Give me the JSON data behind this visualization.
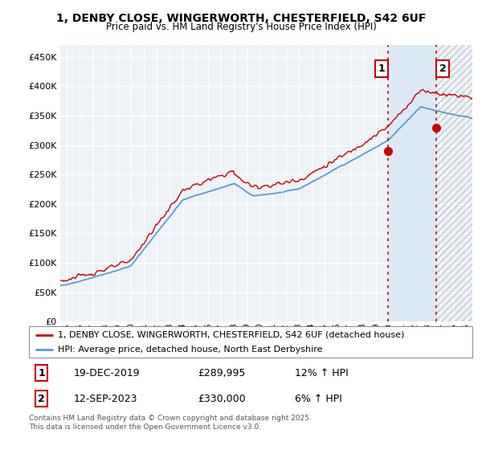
{
  "title_line1": "1, DENBY CLOSE, WINGERWORTH, CHESTERFIELD, S42 6UF",
  "title_line2": "Price paid vs. HM Land Registry's House Price Index (HPI)",
  "ylabel_ticks": [
    "£0",
    "£50K",
    "£100K",
    "£150K",
    "£200K",
    "£250K",
    "£300K",
    "£350K",
    "£400K",
    "£450K"
  ],
  "ytick_values": [
    0,
    50000,
    100000,
    150000,
    200000,
    250000,
    300000,
    350000,
    400000,
    450000
  ],
  "xlim_start": 1994.5,
  "xlim_end": 2026.5,
  "ylim": [
    0,
    470000
  ],
  "red_color": "#cc0000",
  "blue_color": "#5b9bd5",
  "blue_fill_color": "#dce8f5",
  "dashed_color": "#cc0000",
  "background_color": "#edf2f7",
  "grid_color": "#ffffff",
  "legend_label_red": "1, DENBY CLOSE, WINGERWORTH, CHESTERFIELD, S42 6UF (detached house)",
  "legend_label_blue": "HPI: Average price, detached house, North East Derbyshire",
  "sale1_date": "19-DEC-2019",
  "sale1_price": "£289,995",
  "sale1_hpi": "12% ↑ HPI",
  "sale1_x": 2019.96,
  "sale1_y": 289995,
  "sale2_date": "12-SEP-2023",
  "sale2_price": "£330,000",
  "sale2_hpi": "6% ↑ HPI",
  "sale2_x": 2023.71,
  "sale2_y": 330000,
  "footer": "Contains HM Land Registry data © Crown copyright and database right 2025.\nThis data is licensed under the Open Government Licence v3.0.",
  "title_fontsize": 10,
  "tick_fontsize": 8,
  "legend_fontsize": 8
}
